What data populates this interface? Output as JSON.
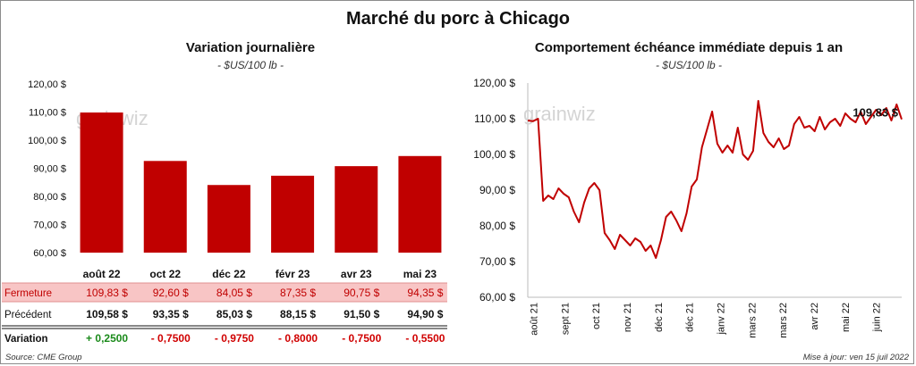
{
  "title": "Marché du porc à Chicago",
  "left": {
    "subtitle": "Variation journalière",
    "unit": "- $US/100 lb -",
    "watermark": "grainwiz"
  },
  "right": {
    "subtitle": "Comportement échéance immédiate depuis 1 an",
    "unit": "- $US/100 lb -",
    "watermark": "grainwiz",
    "last_label": "109,83 $"
  },
  "colors": {
    "bar": "#c00000",
    "line": "#c00000",
    "highlight": "#f8c5c5",
    "positive": "#1a8a1a",
    "negative": "#d00000"
  },
  "table": {
    "rows": [
      {
        "label": "Fermeture",
        "values": [
          "109,83 $",
          "92,60 $",
          "84,05 $",
          "87,35 $",
          "90,75 $",
          "94,35 $"
        ]
      },
      {
        "label": "Précédent",
        "values": [
          "109,58 $",
          "93,35 $",
          "85,03 $",
          "88,15 $",
          "91,50 $",
          "94,90 $"
        ]
      },
      {
        "label": "Variation",
        "values": [
          "+ 0,2500",
          "- 0,7500",
          "- 0,9750",
          "- 0,8000",
          "- 0,7500",
          "- 0,5500"
        ]
      }
    ]
  },
  "footer": {
    "source": "Source: CME Group",
    "updated": "Mise à jour: ven 15 juil 2022"
  },
  "chart_data": [
    {
      "type": "bar",
      "title": "Variation journalière",
      "ylabel": "- $US/100 lb -",
      "categories": [
        "août 22",
        "oct 22",
        "déc 22",
        "févr 23",
        "avr 23",
        "mai 23"
      ],
      "values": [
        109.83,
        92.6,
        84.05,
        87.35,
        90.75,
        94.35
      ],
      "ylim": [
        60,
        120
      ],
      "yticks": [
        "60,00 $",
        "70,00 $",
        "80,00 $",
        "90,00 $",
        "100,00 $",
        "110,00 $",
        "120,00 $"
      ]
    },
    {
      "type": "line",
      "title": "Comportement échéance immédiate depuis 1 an",
      "ylabel": "- $US/100 lb -",
      "ylim": [
        60,
        120
      ],
      "yticks": [
        "60,00 $",
        "70,00 $",
        "80,00 $",
        "90,00 $",
        "100,00 $",
        "110,00 $",
        "120,00 $"
      ],
      "xticks": [
        "août 21",
        "sept 21",
        "oct 21",
        "nov 21",
        "déc 21",
        "déc 21",
        "janv 22",
        "mars 22",
        "mars 22",
        "avr 22",
        "mai 22",
        "juin 22"
      ],
      "x": [
        "2021-07-15",
        "2021-07-20",
        "2021-07-25",
        "2021-07-30",
        "2021-08-04",
        "2021-08-09",
        "2021-08-14",
        "2021-08-19",
        "2021-08-24",
        "2021-08-29",
        "2021-09-03",
        "2021-09-08",
        "2021-09-13",
        "2021-09-18",
        "2021-09-23",
        "2021-09-28",
        "2021-10-03",
        "2021-10-08",
        "2021-10-13",
        "2021-10-18",
        "2021-10-23",
        "2021-10-28",
        "2021-11-02",
        "2021-11-07",
        "2021-11-12",
        "2021-11-17",
        "2021-11-22",
        "2021-11-27",
        "2021-12-02",
        "2021-12-07",
        "2021-12-12",
        "2021-12-17",
        "2021-12-22",
        "2021-12-27",
        "2022-01-01",
        "2022-01-06",
        "2022-01-11",
        "2022-01-16",
        "2022-01-21",
        "2022-01-26",
        "2022-01-31",
        "2022-02-05",
        "2022-02-10",
        "2022-02-15",
        "2022-02-20",
        "2022-02-25",
        "2022-03-02",
        "2022-03-07",
        "2022-03-12",
        "2022-03-17",
        "2022-03-22",
        "2022-03-27",
        "2022-04-01",
        "2022-04-06",
        "2022-04-11",
        "2022-04-16",
        "2022-04-21",
        "2022-04-26",
        "2022-05-01",
        "2022-05-06",
        "2022-05-11",
        "2022-05-16",
        "2022-05-21",
        "2022-05-26",
        "2022-05-31",
        "2022-06-05",
        "2022-06-10",
        "2022-06-15",
        "2022-06-20",
        "2022-06-25",
        "2022-06-30",
        "2022-07-05",
        "2022-07-10",
        "2022-07-15"
      ],
      "values": [
        109.5,
        109.3,
        110.0,
        87.0,
        88.5,
        87.5,
        90.5,
        89.0,
        88.0,
        84.0,
        81.0,
        86.5,
        90.5,
        92.0,
        90.0,
        78.0,
        76.0,
        73.5,
        77.5,
        76.0,
        74.5,
        76.5,
        75.5,
        73.0,
        74.5,
        71.0,
        76.0,
        82.5,
        84.0,
        81.5,
        78.5,
        83.5,
        91.0,
        93.0,
        102.0,
        107.0,
        112.0,
        103.0,
        100.5,
        102.5,
        100.5,
        107.5,
        100.0,
        98.5,
        101.0,
        115.0,
        106.0,
        103.5,
        102.0,
        104.5,
        101.5,
        102.5,
        108.5,
        110.5,
        107.5,
        108.0,
        106.5,
        110.5,
        107.0,
        109.0,
        110.0,
        108.0,
        111.5,
        110.0,
        109.0,
        112.0,
        108.5,
        110.5,
        112.5,
        111.0,
        113.0,
        109.5,
        114.0,
        109.83
      ],
      "annotation": "109,83 $"
    }
  ]
}
